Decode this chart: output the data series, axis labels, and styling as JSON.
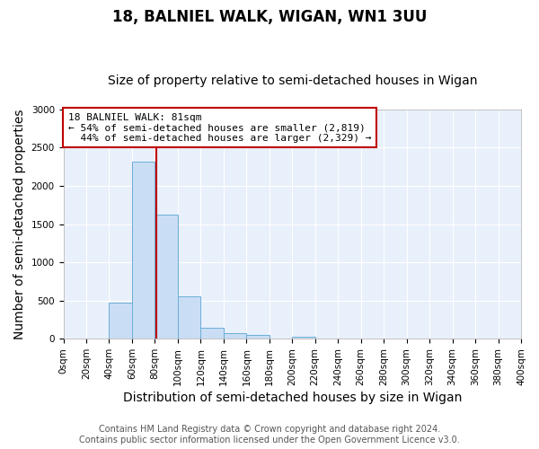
{
  "title": "18, BALNIEL WALK, WIGAN, WN1 3UU",
  "subtitle": "Size of property relative to semi-detached houses in Wigan",
  "xlabel": "Distribution of semi-detached houses by size in Wigan",
  "ylabel": "Number of semi-detached properties",
  "footer_line1": "Contains HM Land Registry data © Crown copyright and database right 2024.",
  "footer_line2": "Contains public sector information licensed under the Open Government Licence v3.0.",
  "property_size": 81,
  "property_label": "18 BALNIEL WALK: 81sqm",
  "pct_smaller": 54,
  "pct_larger": 44,
  "n_smaller": 2819,
  "n_larger": 2329,
  "bin_edges": [
    0,
    20,
    40,
    60,
    80,
    100,
    120,
    140,
    160,
    180,
    200,
    220,
    240,
    260,
    280,
    300,
    320,
    340,
    360,
    380,
    400
  ],
  "bin_values": [
    0,
    5,
    470,
    2320,
    1620,
    560,
    150,
    80,
    50,
    0,
    30,
    0,
    0,
    0,
    0,
    0,
    0,
    0,
    0,
    0
  ],
  "bar_color": "#c9ddf5",
  "bar_edge_color": "#6baed6",
  "marker_color": "#c00000",
  "ylim": [
    0,
    3000
  ],
  "yticks": [
    0,
    500,
    1000,
    1500,
    2000,
    2500,
    3000
  ],
  "bg_color": "#e8f0fb",
  "grid_color": "#ffffff",
  "annotation_box_color": "#c00000",
  "title_fontsize": 12,
  "subtitle_fontsize": 10,
  "axis_label_fontsize": 10,
  "tick_fontsize": 7.5,
  "footer_fontsize": 7,
  "annotation_fontsize": 8
}
